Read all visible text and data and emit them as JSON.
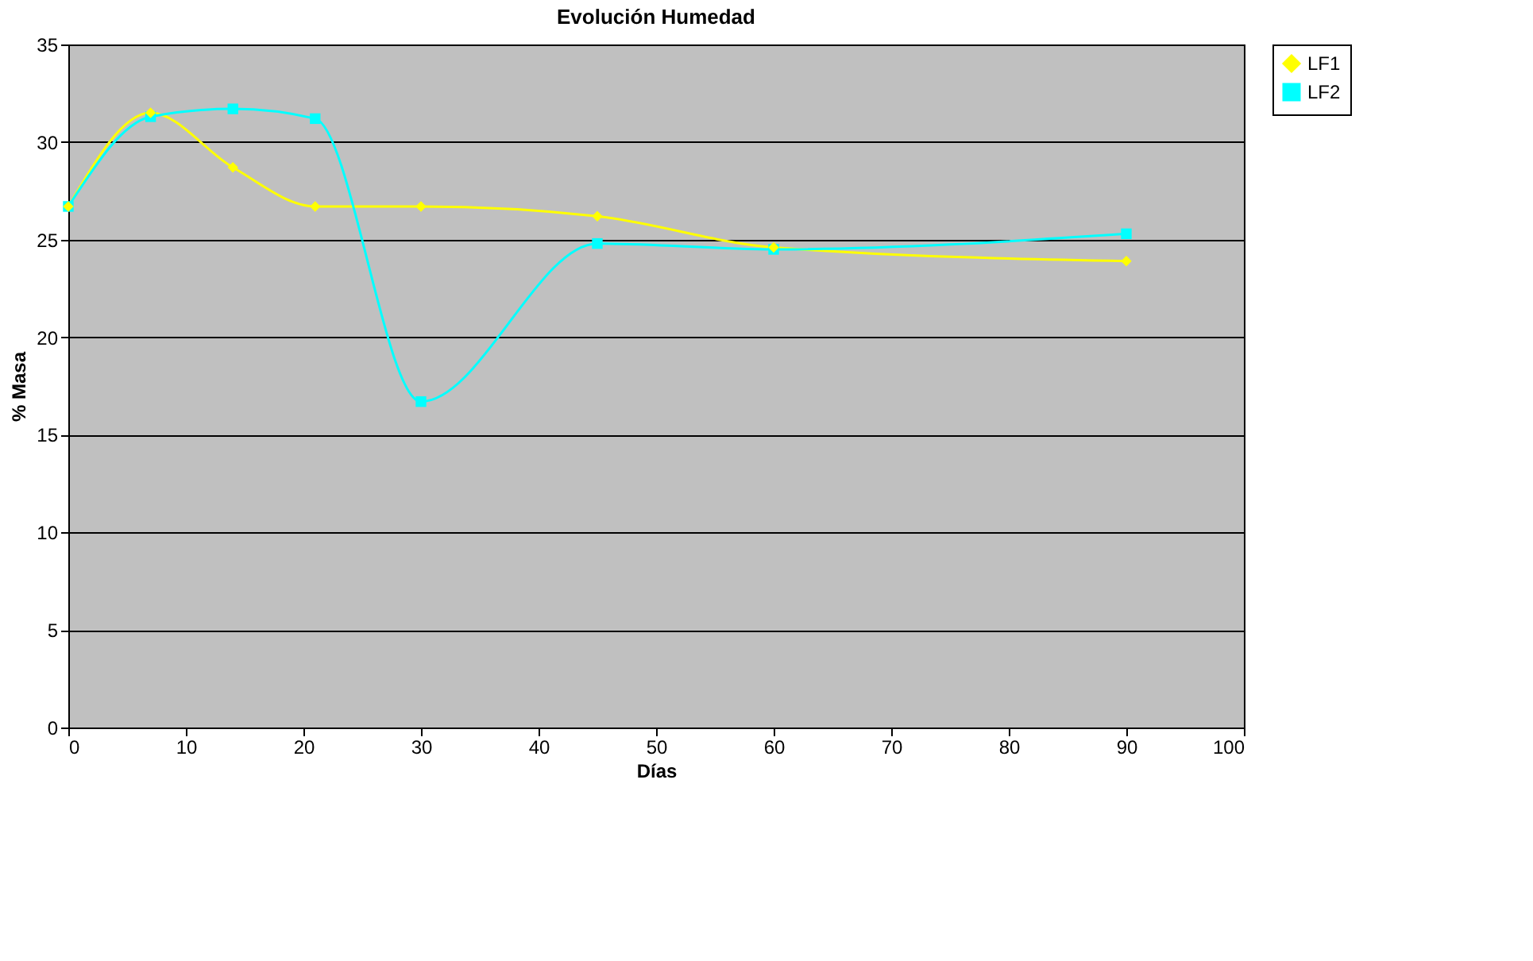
{
  "chart_data": {
    "type": "line",
    "title": "Evolución Humedad",
    "xlabel": "Días",
    "ylabel": "% Masa",
    "xlim": [
      0,
      100
    ],
    "xticks": [
      0,
      10,
      20,
      30,
      40,
      50,
      60,
      70,
      80,
      90,
      100
    ],
    "ylim": [
      0,
      35
    ],
    "yticks": [
      0,
      5,
      10,
      15,
      20,
      25,
      30,
      35
    ],
    "grid": "y",
    "legend": "right",
    "line_style": "solid",
    "series": [
      {
        "name": "LF1",
        "color": "#ffff00",
        "marker": "diamond",
        "x": [
          0,
          7,
          14,
          21,
          30,
          45,
          60,
          90
        ],
        "values": [
          26.7,
          31.5,
          28.7,
          26.7,
          26.7,
          26.2,
          24.6,
          23.9
        ]
      },
      {
        "name": "LF2",
        "color": "#00ffff",
        "marker": "square",
        "x": [
          0,
          7,
          14,
          21,
          30,
          45,
          60,
          90
        ],
        "values": [
          26.7,
          31.3,
          31.7,
          31.2,
          16.7,
          24.8,
          24.5,
          25.3
        ]
      }
    ]
  }
}
